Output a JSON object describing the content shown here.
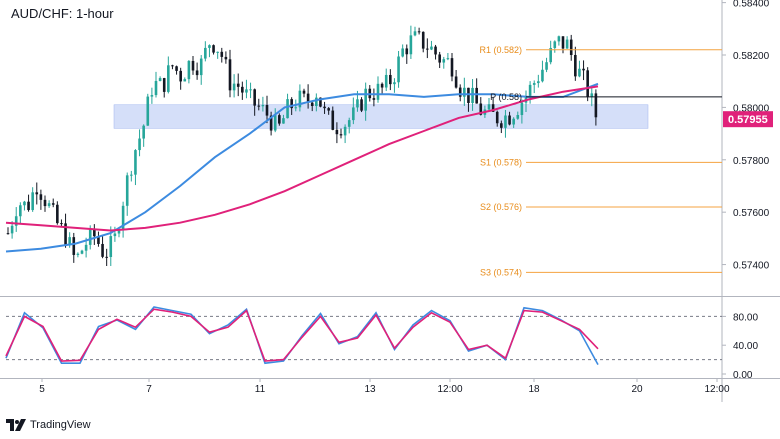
{
  "header": {
    "title": "AUD/CHF: 1-hour"
  },
  "brand": {
    "name": "TradingView",
    "logo_icon": "tradingview-logo-icon"
  },
  "chart_data": [
    {
      "type": "candlestick",
      "symbol": "AUD/CHF",
      "timeframe": "1-hour",
      "last_price_label": "0.57955",
      "ylim": [
        0.5728,
        0.5841
      ],
      "y_ticks": [
        0.574,
        0.576,
        0.578,
        0.58,
        0.582,
        0.584
      ],
      "y_tick_labels": [
        "0.57400",
        "0.57600",
        "0.57800",
        "0.58000",
        "0.58200",
        "0.58400"
      ],
      "x_tick_labels": [
        "5",
        "7",
        "11",
        "13",
        "12:00",
        "18",
        "20",
        "12:00"
      ],
      "price_path": [
        [
          0.5752,
          0.5764
        ],
        [
          0.5762,
          0.5771
        ],
        [
          0.5764,
          0.5756
        ],
        [
          0.5751,
          0.5741
        ],
        [
          0.5748,
          0.5751
        ],
        [
          0.5744,
          0.5748
        ],
        [
          0.5766,
          0.5782
        ],
        [
          0.5792,
          0.5809
        ],
        [
          0.5808,
          0.5816
        ],
        [
          0.5812,
          0.5818
        ],
        [
          0.5816,
          0.5826
        ],
        [
          0.5822,
          0.581
        ],
        [
          0.5808,
          0.5803
        ],
        [
          0.58,
          0.5797
        ],
        [
          0.5791,
          0.5799
        ],
        [
          0.5803,
          0.5802
        ],
        [
          0.5806,
          0.5796
        ],
        [
          0.5793,
          0.5794
        ],
        [
          0.5797,
          0.5805
        ],
        [
          0.5806,
          0.5807
        ],
        [
          0.5812,
          0.5822
        ],
        [
          0.5826,
          0.5825
        ],
        [
          0.5822,
          0.5818
        ],
        [
          0.5817,
          0.5807
        ],
        [
          0.5804,
          0.5799
        ],
        [
          0.5797,
          0.5796
        ],
        [
          0.5797,
          0.5801
        ],
        [
          0.5806,
          0.5812
        ],
        [
          0.5818,
          0.5825
        ],
        [
          0.5824,
          0.5815
        ],
        [
          0.5808,
          0.5797
        ]
      ],
      "moving_averages": [
        {
          "color": "#3d8be0",
          "values": [
            0.5745,
            0.5746,
            0.5748,
            0.5752,
            0.576,
            0.577,
            0.5781,
            0.579,
            0.58,
            0.5803,
            0.5805,
            0.5805,
            0.5804,
            0.5805,
            0.5805,
            0.5804,
            0.5804,
            0.5809
          ]
        },
        {
          "color": "#e0217a",
          "values": [
            0.5756,
            0.5755,
            0.5754,
            0.5753,
            0.5754,
            0.5756,
            0.5759,
            0.5763,
            0.5768,
            0.5774,
            0.578,
            0.5786,
            0.5791,
            0.5796,
            0.5799,
            0.5803,
            0.5806,
            0.5808
          ]
        }
      ],
      "zone": {
        "from": 0.5792,
        "to": 0.5801,
        "color": "#c7d4f7"
      },
      "levels": [
        {
          "label": "R1 (0.582)",
          "value": 0.5822,
          "color": "#f4a340"
        },
        {
          "label": "P (0.58)",
          "value": 0.5804,
          "color": "#131722"
        },
        {
          "label": "S1 (0.578)",
          "value": 0.5779,
          "color": "#f4a340"
        },
        {
          "label": "S2 (0.576)",
          "value": 0.5762,
          "color": "#f4a340"
        },
        {
          "label": "S3 (0.574)",
          "value": 0.5737,
          "color": "#f4a340"
        }
      ],
      "colors": {
        "up": "#26a69a",
        "down": "#131722",
        "price_label_bg": "#e0217a"
      }
    },
    {
      "type": "line",
      "name": "stochastic-oscillator",
      "ylim": [
        0,
        100
      ],
      "y_tick_labels": [
        "80.00",
        "40.00",
        "0.00"
      ],
      "y_ticks": [
        80,
        40,
        0
      ],
      "guide_levels": [
        80,
        20
      ],
      "series": [
        {
          "color": "#3d8be0",
          "values": [
            22,
            85,
            64,
            15,
            15,
            66,
            75,
            62,
            93,
            88,
            83,
            56,
            68,
            90,
            15,
            18,
            53,
            84,
            42,
            52,
            85,
            34,
            68,
            88,
            74,
            32,
            40,
            20,
            92,
            88,
            75,
            60,
            13
          ]
        },
        {
          "color": "#e0217a",
          "values": [
            25,
            80,
            66,
            18,
            19,
            62,
            76,
            65,
            90,
            86,
            80,
            58,
            65,
            88,
            18,
            20,
            51,
            80,
            44,
            50,
            82,
            36,
            65,
            85,
            72,
            34,
            40,
            22,
            88,
            86,
            74,
            62,
            35
          ]
        }
      ]
    }
  ]
}
